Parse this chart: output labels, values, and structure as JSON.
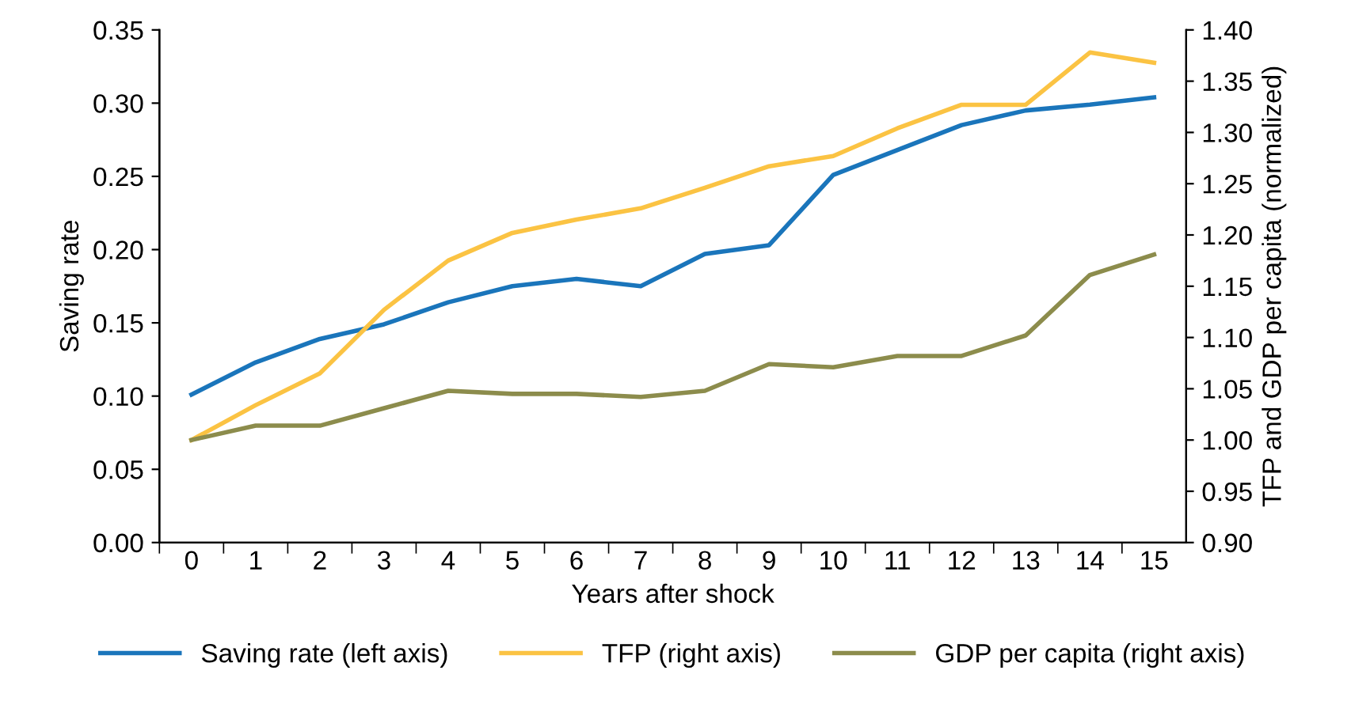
{
  "chart_data": {
    "type": "line",
    "xlabel": "Years after shock",
    "ylabel": "Saving rate",
    "y2label": "TFP and GDP per capita (normalized)",
    "categories": [
      "0",
      "1",
      "2",
      "3",
      "4",
      "5",
      "6",
      "7",
      "8",
      "9",
      "10",
      "11",
      "12",
      "13",
      "14",
      "15"
    ],
    "series": [
      {
        "name": "Saving rate (left axis)",
        "color": "#1a75bb",
        "values": [
          0.101,
          0.123,
          0.139,
          0.149,
          0.164,
          0.175,
          0.18,
          0.175,
          0.197,
          0.203,
          0.251,
          0.268,
          0.285,
          0.295,
          0.299,
          0.304
        ]
      },
      {
        "name": "TFP (right axis)",
        "color": "#fbc343",
        "axis": "y2",
        "values": [
          1.0,
          1.034,
          1.065,
          1.127,
          1.175,
          1.202,
          1.215,
          1.226,
          1.246,
          1.267,
          1.277,
          1.304,
          1.327,
          1.327,
          1.378,
          1.368
        ]
      },
      {
        "name": "GDP per capita (right axis)",
        "color": "#8c8c4c",
        "axis": "y2",
        "values": [
          1.0,
          1.014,
          1.014,
          1.031,
          1.048,
          1.045,
          1.045,
          1.042,
          1.048,
          1.074,
          1.071,
          1.082,
          1.082,
          1.102,
          1.161,
          1.181
        ]
      }
    ],
    "ylim": [
      0,
      0.35
    ],
    "yticks": [
      {
        "value": 0,
        "label": "0.00"
      },
      {
        "value": 0.05,
        "label": "0.05"
      },
      {
        "value": 0.1,
        "label": "0.10"
      },
      {
        "value": 0.15,
        "label": "0.15"
      },
      {
        "value": 0.2,
        "label": "0.20"
      },
      {
        "value": 0.25,
        "label": "0.25"
      },
      {
        "value": 0.3,
        "label": "0.30"
      },
      {
        "value": 0.35,
        "label": "0.35"
      }
    ],
    "y2lim": [
      0.9,
      1.4
    ],
    "y2ticks": [
      {
        "value": 0.9,
        "label": "0.90"
      },
      {
        "value": 0.95,
        "label": "0.95"
      },
      {
        "value": 1.0,
        "label": "1.00"
      },
      {
        "value": 1.05,
        "label": "1.05"
      },
      {
        "value": 1.1,
        "label": "1.10"
      },
      {
        "value": 1.15,
        "label": "1.15"
      },
      {
        "value": 1.2,
        "label": "1.20"
      },
      {
        "value": 1.25,
        "label": "1.25"
      },
      {
        "value": 1.3,
        "label": "1.30"
      },
      {
        "value": 1.35,
        "label": "1.35"
      },
      {
        "value": 1.4,
        "label": "1.40"
      }
    ],
    "grid": false,
    "legend": "bottom",
    "marker": "none",
    "line_style": "solid"
  }
}
